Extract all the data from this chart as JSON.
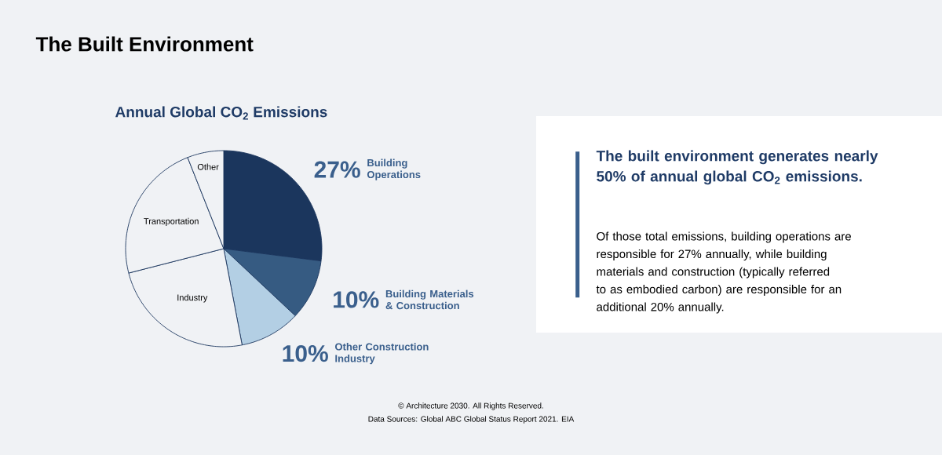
{
  "chart_data": {
    "type": "pie",
    "title": "The Built Environment",
    "subtitle": "Annual Global CO$_{2}$ Emissions",
    "categories": [
      "Building Operations",
      "Building Materials & Construction",
      "Other Construction Industry",
      "Industry",
      "Transportation",
      "Other"
    ],
    "values": [
      27,
      10,
      10,
      24,
      23,
      6
    ],
    "colors": [
      "#1b365d",
      "#365b82",
      "#b3cfe4",
      "#f0f2f5",
      "#f0f2f5",
      "#f0f2f5"
    ],
    "value_labels": [
      "27%",
      "10%",
      "10%",
      null,
      null,
      null
    ],
    "annotations": [
      "The built environment generates nearly 50% of annual global CO$_{2}$ emissions.",
      "Of those total emissions, building operations are responsible for 27% annually, while building materials and construction (typically referred to as embodied carbon) are responsible for an additional 20% annually.",
      "© Architecture 2030. All Rights Reserved.",
      "Data Sources: Global ABC Global Status Report 2021. EIA"
    ]
  }
}
